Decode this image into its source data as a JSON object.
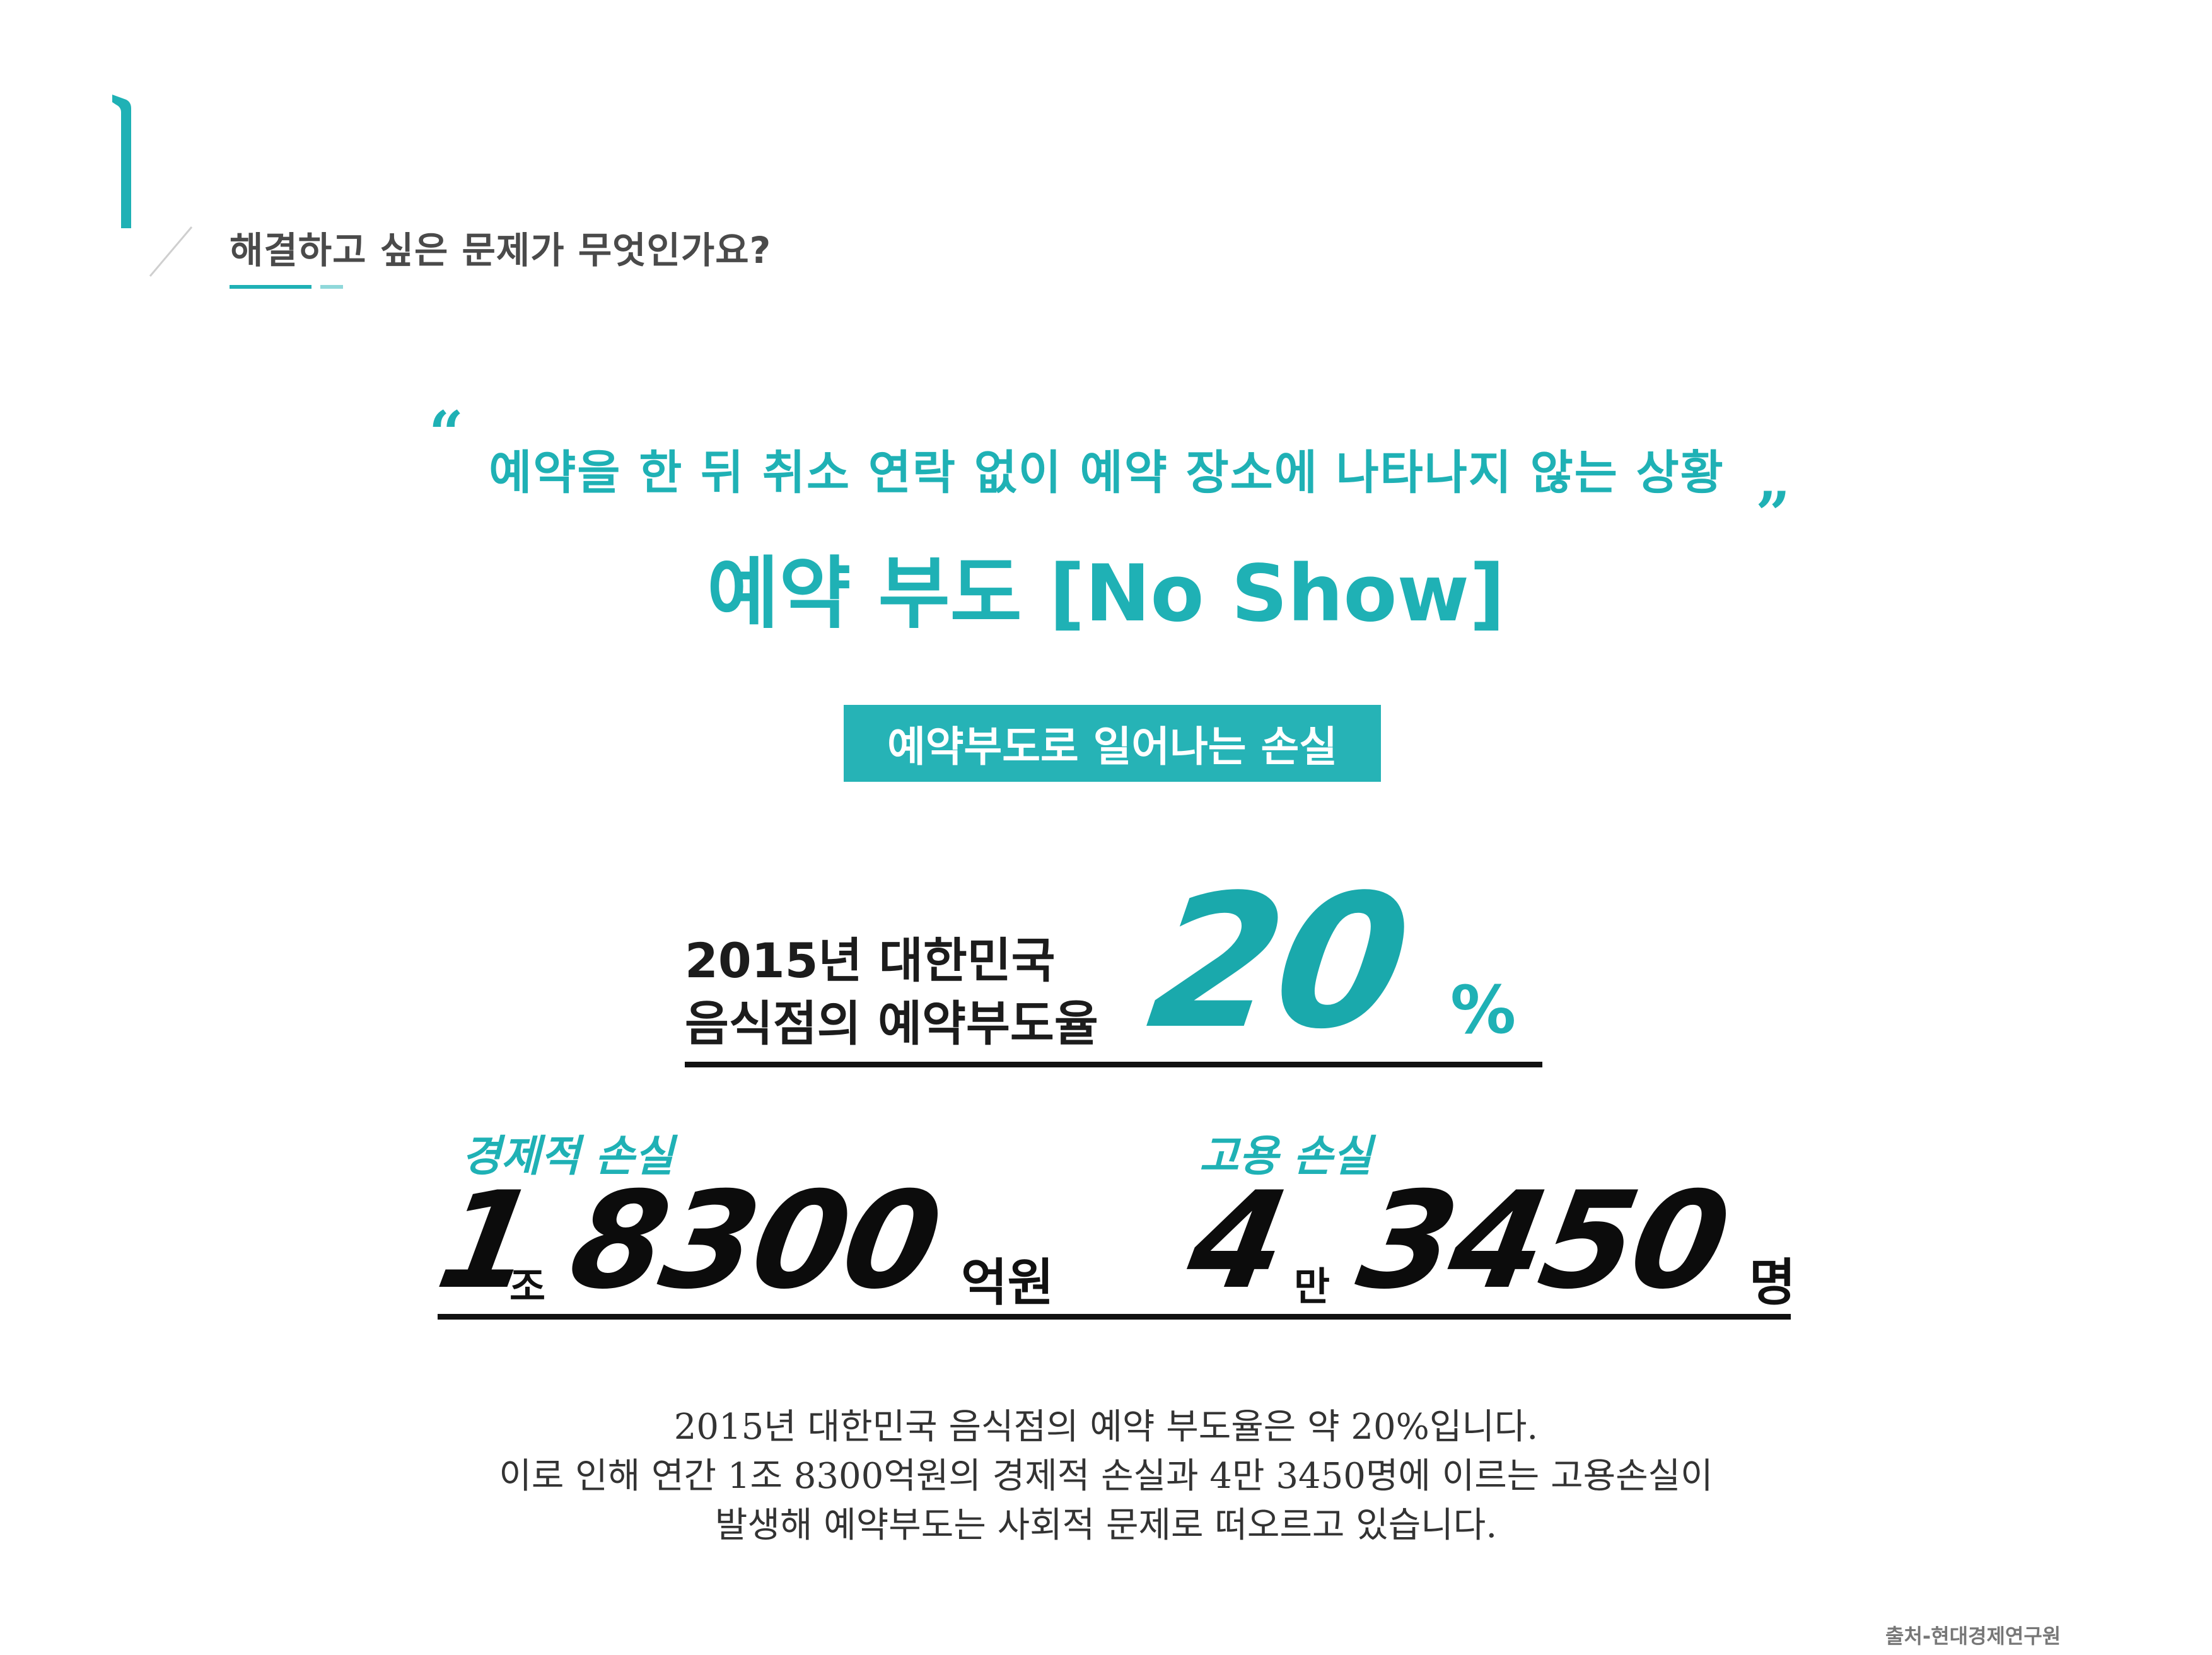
{
  "section": {
    "number_mark": "1",
    "question": "해결하고 싶은 문제가 무엇인가요?"
  },
  "definition": {
    "quote_open": "“",
    "quote_close": "”",
    "description": "예약을 한 뒤 취소 연락 없이 예약 장소에 나타나지 않는 상황",
    "term": "예약 부도 [No Show]"
  },
  "loss_label": "예약부도로 일어나는 손실",
  "rate": {
    "label_line1": "2015년 대한민국",
    "label_line2": "음식점의 예약부도율",
    "value": "20",
    "unit": "%"
  },
  "economic_loss": {
    "label": "경제적 손실",
    "num1": "1",
    "unit1": "조",
    "num2": "8300",
    "unit2": "억원"
  },
  "employment_loss": {
    "label": "고용 손실",
    "num1": "4",
    "unit1": "만",
    "num2": "3450",
    "unit2": "명"
  },
  "summary": [
    "2015년 대한민국 음식점의 예약 부도율은 약 20%입니다.",
    "이로 인해 연간 1조 8300억원의 경제적 손실과 4만 3450명에 이르는 고용손실이",
    "발생해 예약부도는 사회적 문제로 떠오르고 있습니다."
  ],
  "source": "출처-현대경제연구원",
  "colors": {
    "accent": "#1fb1b5",
    "box": "#26b3b6",
    "text_dark": "#0c0c0c"
  }
}
